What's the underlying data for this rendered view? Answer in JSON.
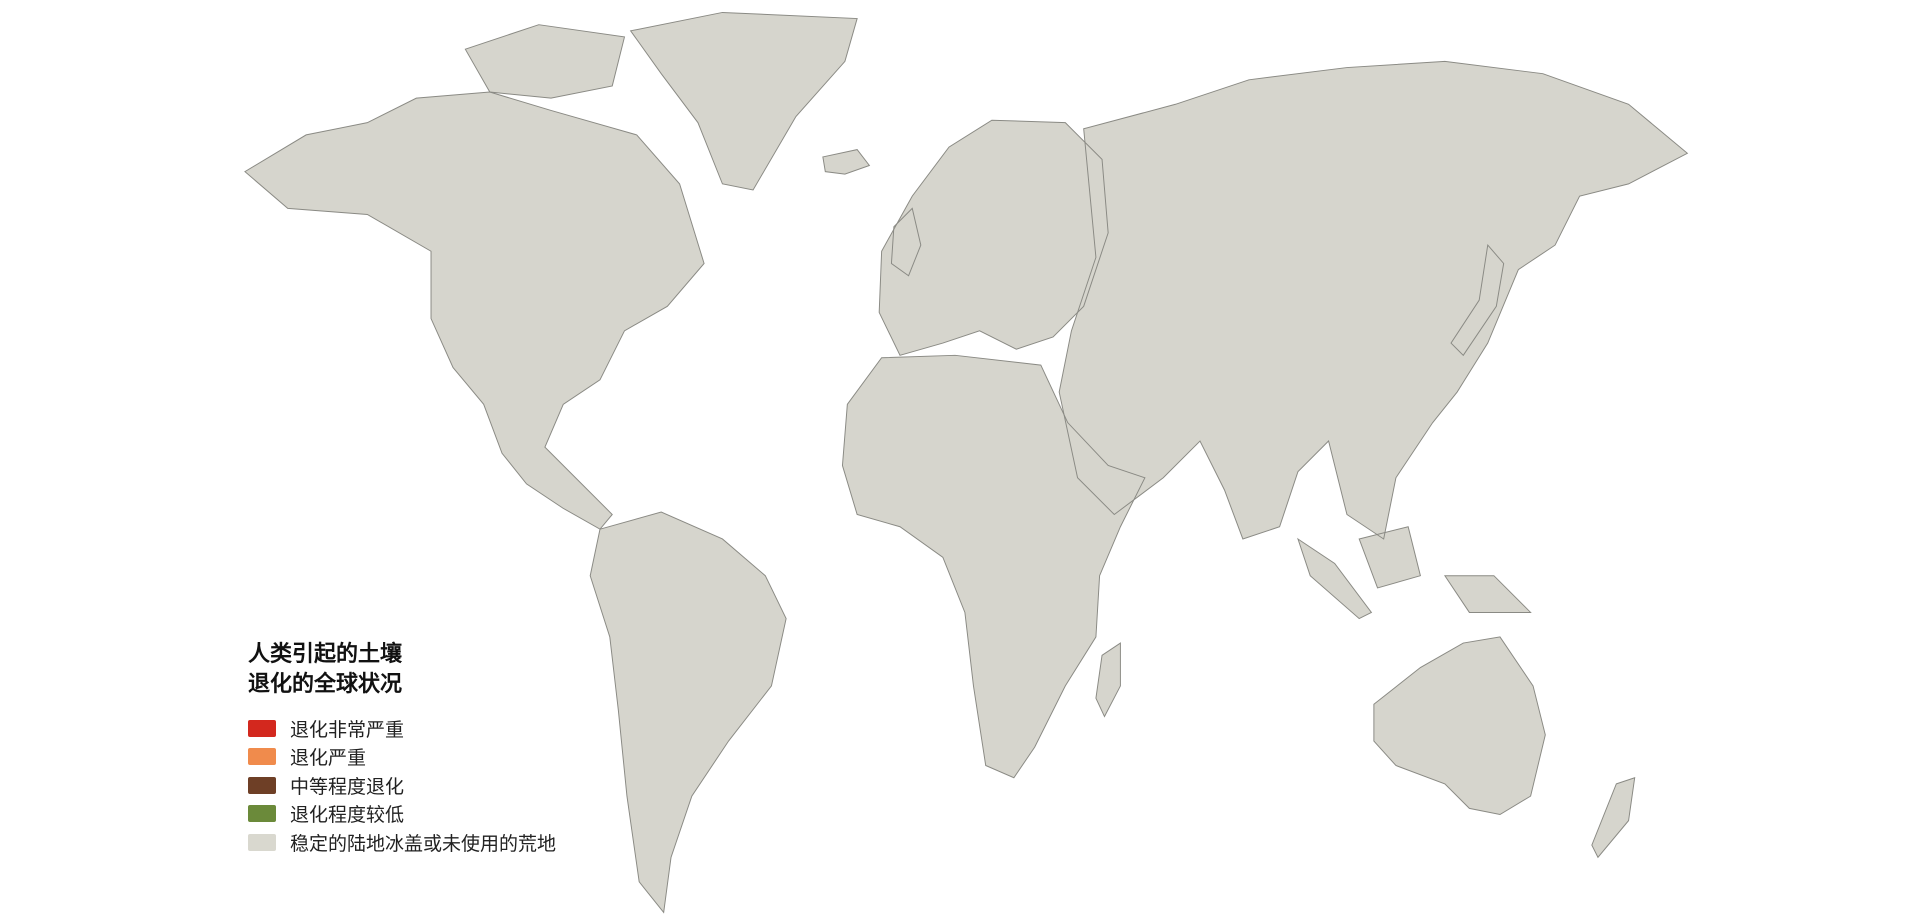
{
  "legend": {
    "title_line1": "人类引起的土壤",
    "title_line2": "退化的全球状况",
    "items": [
      {
        "label": "退化非常严重",
        "color": "#d3281e"
      },
      {
        "label": "退化严重",
        "color": "#f08b4c"
      },
      {
        "label": "中等程度退化",
        "color": "#6e3f26"
      },
      {
        "label": "退化程度较低",
        "color": "#6b8a3a"
      },
      {
        "label": "稳定的陆地冰盖或未使用的荒地",
        "color": "#d9d8cf"
      }
    ]
  },
  "map": {
    "land_base_color": "#d6d5cd",
    "border_color": "#8a8a84",
    "ocean_color": "#ffffff"
  }
}
